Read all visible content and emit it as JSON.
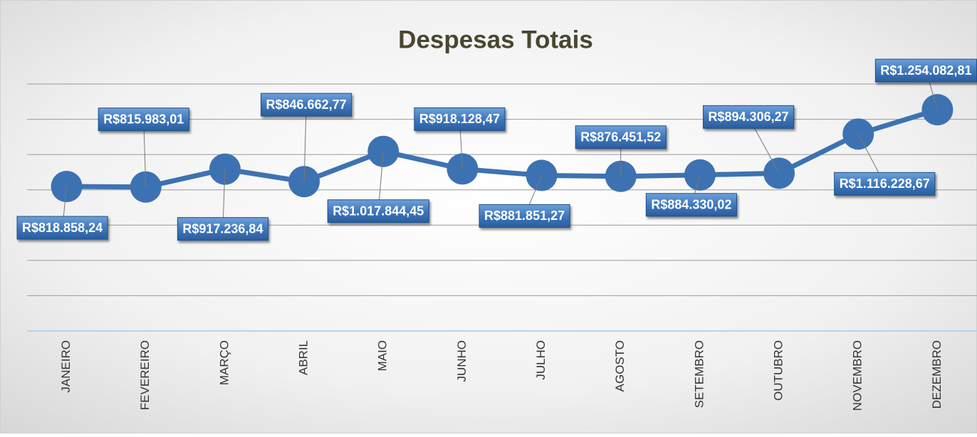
{
  "chart_data": {
    "type": "line",
    "title": "Despesas Totais",
    "categories": [
      "JANEIRO",
      "FEVEREIRO",
      "MARÇO",
      "ABRIL",
      "MAIO",
      "JUNHO",
      "JULHO",
      "AGOSTO",
      "SETEMBRO",
      "OUTUBRO",
      "NOVEMBRO",
      "DEZEMBRO"
    ],
    "series": [
      {
        "name": "Despesas Totais",
        "color": "#3d72b2",
        "values": [
          818858.24,
          815983.01,
          917236.84,
          846662.77,
          1017844.45,
          918128.47,
          881851.27,
          876451.52,
          884330.02,
          894306.27,
          1116228.67,
          1254082.81
        ],
        "value_labels": [
          "R$818.858,24",
          "R$815.983,01",
          "R$917.236,84",
          "R$846.662,77",
          "R$1.017.844,45",
          "R$918.128,47",
          "R$881.851,27",
          "R$876.451,52",
          "R$884.330,02",
          "R$894.306,27",
          "R$1.116.228,67",
          "R$1.254.082,81"
        ]
      }
    ],
    "ylim": [
      0,
      1400000
    ],
    "yticks": [
      0,
      200000,
      400000,
      600000,
      800000,
      1000000,
      1200000,
      1400000
    ],
    "grid": true
  }
}
